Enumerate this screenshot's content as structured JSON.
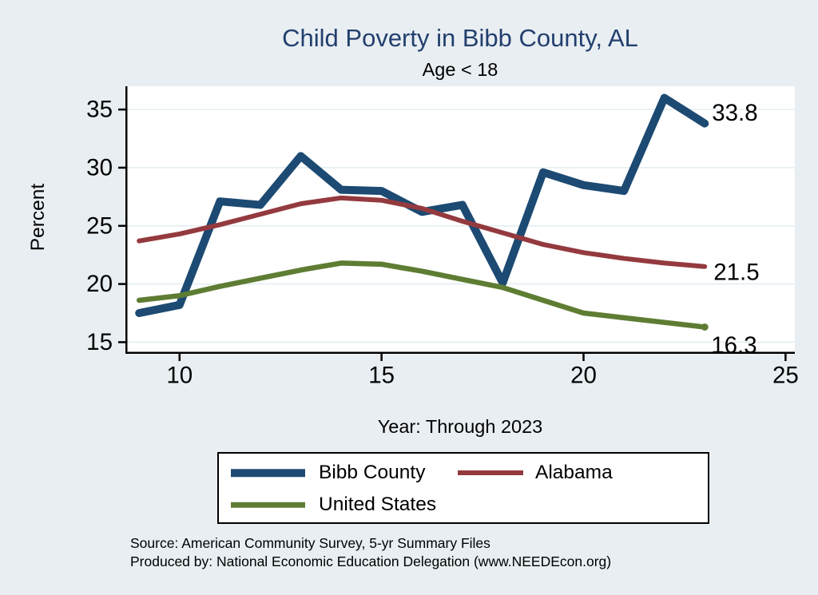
{
  "title": "Child Poverty in Bibb County, AL",
  "subtitle": "Age < 18",
  "ylabel": "Percent",
  "xlabel": "Year: Through 2023",
  "footer": {
    "line1": "Source: American Community Survey, 5-yr Summary Files",
    "line2": "Produced by: National Economic Education Delegation (www.NEEDEcon.org)"
  },
  "legend": {
    "items": [
      {
        "label": "Bibb County",
        "color": "#1c4a72",
        "thickness": 9.5
      },
      {
        "label": "Alabama",
        "color": "#943a3f",
        "thickness": 6
      },
      {
        "label": "United States",
        "color": "#5e7d33",
        "thickness": 6.5
      }
    ]
  },
  "colors": {
    "background": "#e8eef2",
    "plot_background": "#ffffff",
    "gridline": "#e4edf2",
    "axis": "#000000",
    "title": "#233f6e"
  },
  "chart_data": {
    "type": "line",
    "x": [
      9,
      10,
      11,
      12,
      13,
      14,
      15,
      16,
      17,
      18,
      19,
      20,
      21,
      22,
      23
    ],
    "series": [
      {
        "name": "Bibb County",
        "color": "#1c4a72",
        "line_width": 10,
        "values": [
          17.5,
          18.2,
          27.1,
          26.8,
          31.0,
          28.1,
          28.0,
          26.2,
          26.8,
          20.1,
          29.6,
          28.5,
          28.0,
          36.0,
          33.8
        ],
        "end_label": "33.8",
        "end_label_dx": 9,
        "end_label_dy": -13
      },
      {
        "name": "United States",
        "color": "#5e7d33",
        "line_width": 6.5,
        "values": [
          18.6,
          19.0,
          19.8,
          20.5,
          21.2,
          21.8,
          21.7,
          21.1,
          20.4,
          19.7,
          18.6,
          17.5,
          17.1,
          16.7,
          16.3
        ],
        "end_label": "16.3",
        "end_label_dx": 8,
        "end_label_dy": 23,
        "end_marker": true
      },
      {
        "name": "Alabama",
        "color": "#943a3f",
        "line_width": 6,
        "values": [
          23.7,
          24.3,
          25.1,
          26.0,
          26.9,
          27.4,
          27.2,
          26.5,
          25.4,
          24.4,
          23.4,
          22.7,
          22.2,
          21.8,
          21.5
        ],
        "end_label": "21.5",
        "end_label_dx": 11,
        "end_label_dy": 7
      }
    ],
    "xticks": [
      10,
      15,
      20,
      25
    ],
    "yticks": [
      15,
      20,
      25,
      30,
      35
    ],
    "xlim": [
      8.66,
      25.23
    ],
    "ylim": [
      14,
      37
    ],
    "grid": true,
    "legend_position": "bottom",
    "title": "Child Poverty in Bibb County, AL",
    "subtitle": "Age < 18",
    "xlabel": "Year: Through 2023",
    "ylabel": "Percent"
  }
}
